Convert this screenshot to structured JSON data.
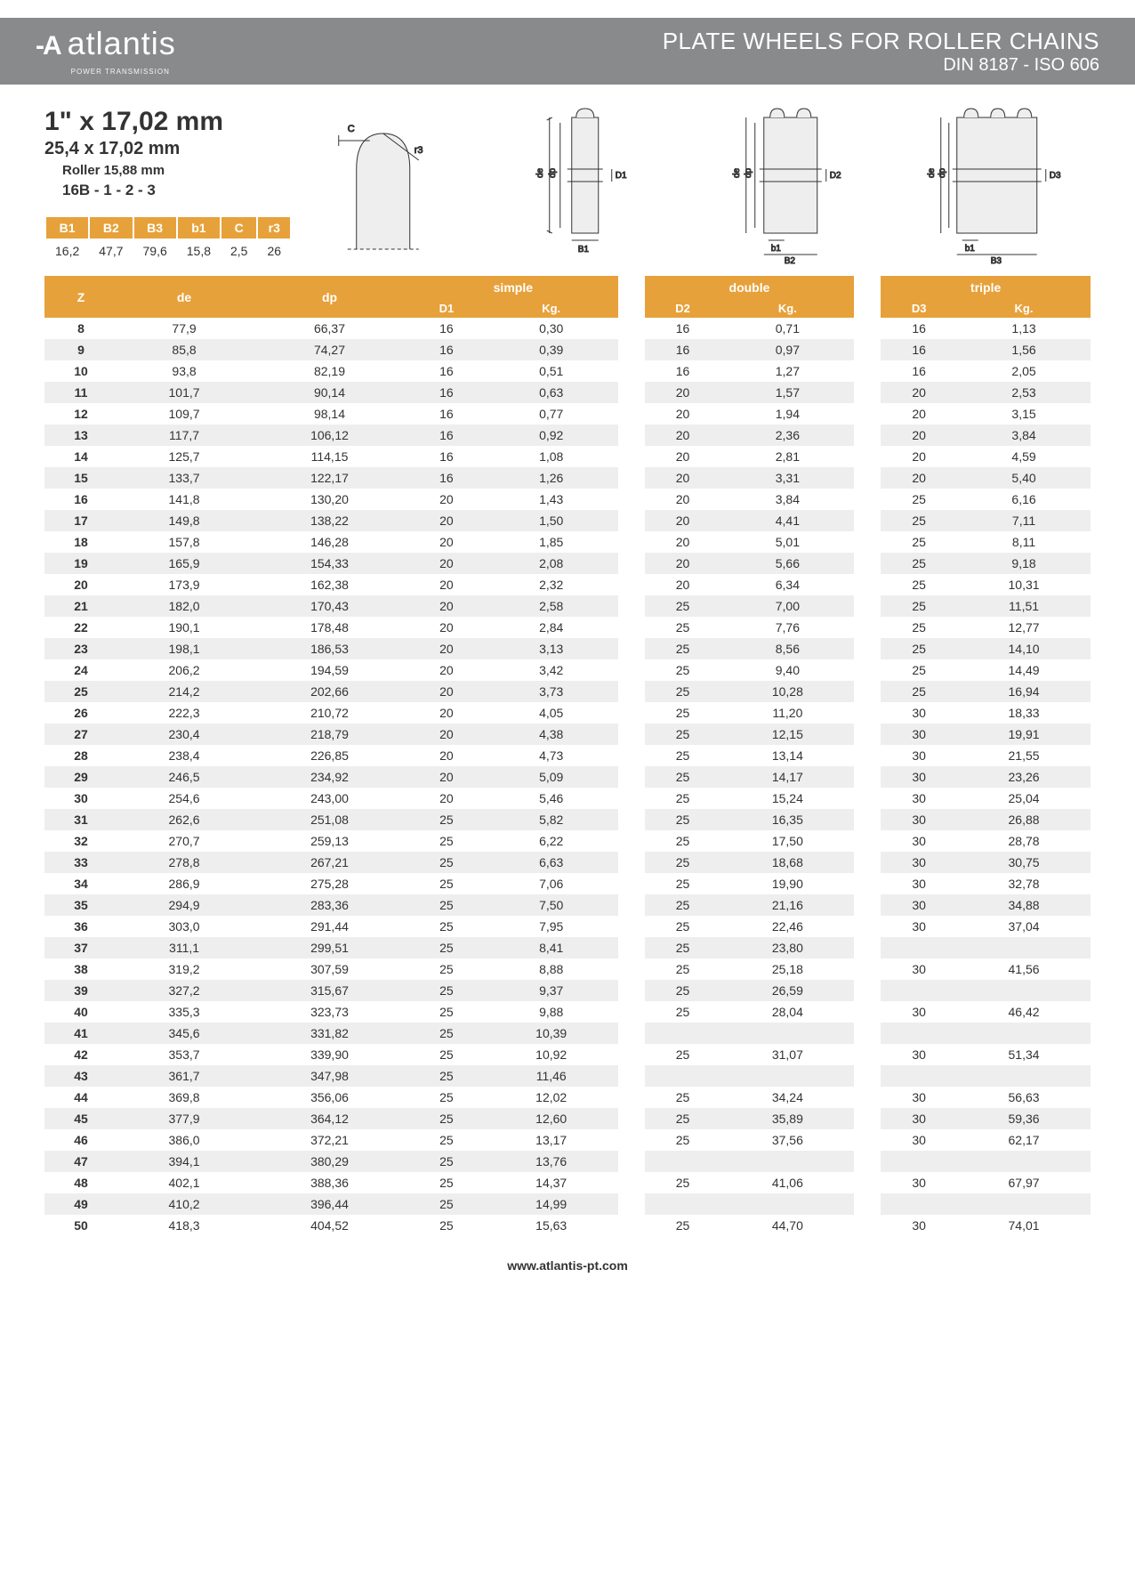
{
  "header": {
    "logo_name": "atlantis",
    "logo_tag": "POWER TRANSMISSION",
    "title": "PLATE WHEELS FOR ROLLER CHAINS",
    "subtitle": "DIN 8187 - ISO 606"
  },
  "spec": {
    "size1": "1\" x 17,02 mm",
    "size2": "25,4 x 17,02 mm",
    "roller": "Roller 15,88 mm",
    "code": "16B - 1 - 2 - 3"
  },
  "params": {
    "headers": [
      "B1",
      "B2",
      "B3",
      "b1",
      "C",
      "r3"
    ],
    "values": [
      "16,2",
      "47,7",
      "79,6",
      "15,8",
      "2,5",
      "26"
    ]
  },
  "diagram_labels": {
    "C": "C",
    "r3": "r3",
    "de": "de",
    "dp": "dp",
    "D1": "D1",
    "D2": "D2",
    "D3": "D3",
    "B1": "B1",
    "B2": "B2",
    "B3": "B3",
    "b1": "b1"
  },
  "table": {
    "groups": [
      "simple",
      "double",
      "triple"
    ],
    "base_cols": [
      "Z",
      "de",
      "dp"
    ],
    "sub_cols": [
      [
        "D1",
        "Kg."
      ],
      [
        "D2",
        "Kg."
      ],
      [
        "D3",
        "Kg."
      ]
    ],
    "rows": [
      {
        "z": "8",
        "de": "77,9",
        "dp": "66,37",
        "d1": "16",
        "k1": "0,30",
        "d2": "16",
        "k2": "0,71",
        "d3": "16",
        "k3": "1,13"
      },
      {
        "z": "9",
        "de": "85,8",
        "dp": "74,27",
        "d1": "16",
        "k1": "0,39",
        "d2": "16",
        "k2": "0,97",
        "d3": "16",
        "k3": "1,56"
      },
      {
        "z": "10",
        "de": "93,8",
        "dp": "82,19",
        "d1": "16",
        "k1": "0,51",
        "d2": "16",
        "k2": "1,27",
        "d3": "16",
        "k3": "2,05"
      },
      {
        "z": "11",
        "de": "101,7",
        "dp": "90,14",
        "d1": "16",
        "k1": "0,63",
        "d2": "20",
        "k2": "1,57",
        "d3": "20",
        "k3": "2,53"
      },
      {
        "z": "12",
        "de": "109,7",
        "dp": "98,14",
        "d1": "16",
        "k1": "0,77",
        "d2": "20",
        "k2": "1,94",
        "d3": "20",
        "k3": "3,15"
      },
      {
        "z": "13",
        "de": "117,7",
        "dp": "106,12",
        "d1": "16",
        "k1": "0,92",
        "d2": "20",
        "k2": "2,36",
        "d3": "20",
        "k3": "3,84"
      },
      {
        "z": "14",
        "de": "125,7",
        "dp": "114,15",
        "d1": "16",
        "k1": "1,08",
        "d2": "20",
        "k2": "2,81",
        "d3": "20",
        "k3": "4,59"
      },
      {
        "z": "15",
        "de": "133,7",
        "dp": "122,17",
        "d1": "16",
        "k1": "1,26",
        "d2": "20",
        "k2": "3,31",
        "d3": "20",
        "k3": "5,40"
      },
      {
        "z": "16",
        "de": "141,8",
        "dp": "130,20",
        "d1": "20",
        "k1": "1,43",
        "d2": "20",
        "k2": "3,84",
        "d3": "25",
        "k3": "6,16"
      },
      {
        "z": "17",
        "de": "149,8",
        "dp": "138,22",
        "d1": "20",
        "k1": "1,50",
        "d2": "20",
        "k2": "4,41",
        "d3": "25",
        "k3": "7,11"
      },
      {
        "z": "18",
        "de": "157,8",
        "dp": "146,28",
        "d1": "20",
        "k1": "1,85",
        "d2": "20",
        "k2": "5,01",
        "d3": "25",
        "k3": "8,11"
      },
      {
        "z": "19",
        "de": "165,9",
        "dp": "154,33",
        "d1": "20",
        "k1": "2,08",
        "d2": "20",
        "k2": "5,66",
        "d3": "25",
        "k3": "9,18"
      },
      {
        "z": "20",
        "de": "173,9",
        "dp": "162,38",
        "d1": "20",
        "k1": "2,32",
        "d2": "20",
        "k2": "6,34",
        "d3": "25",
        "k3": "10,31"
      },
      {
        "z": "21",
        "de": "182,0",
        "dp": "170,43",
        "d1": "20",
        "k1": "2,58",
        "d2": "25",
        "k2": "7,00",
        "d3": "25",
        "k3": "11,51"
      },
      {
        "z": "22",
        "de": "190,1",
        "dp": "178,48",
        "d1": "20",
        "k1": "2,84",
        "d2": "25",
        "k2": "7,76",
        "d3": "25",
        "k3": "12,77"
      },
      {
        "z": "23",
        "de": "198,1",
        "dp": "186,53",
        "d1": "20",
        "k1": "3,13",
        "d2": "25",
        "k2": "8,56",
        "d3": "25",
        "k3": "14,10"
      },
      {
        "z": "24",
        "de": "206,2",
        "dp": "194,59",
        "d1": "20",
        "k1": "3,42",
        "d2": "25",
        "k2": "9,40",
        "d3": "25",
        "k3": "14,49"
      },
      {
        "z": "25",
        "de": "214,2",
        "dp": "202,66",
        "d1": "20",
        "k1": "3,73",
        "d2": "25",
        "k2": "10,28",
        "d3": "25",
        "k3": "16,94"
      },
      {
        "z": "26",
        "de": "222,3",
        "dp": "210,72",
        "d1": "20",
        "k1": "4,05",
        "d2": "25",
        "k2": "11,20",
        "d3": "30",
        "k3": "18,33"
      },
      {
        "z": "27",
        "de": "230,4",
        "dp": "218,79",
        "d1": "20",
        "k1": "4,38",
        "d2": "25",
        "k2": "12,15",
        "d3": "30",
        "k3": "19,91"
      },
      {
        "z": "28",
        "de": "238,4",
        "dp": "226,85",
        "d1": "20",
        "k1": "4,73",
        "d2": "25",
        "k2": "13,14",
        "d3": "30",
        "k3": "21,55"
      },
      {
        "z": "29",
        "de": "246,5",
        "dp": "234,92",
        "d1": "20",
        "k1": "5,09",
        "d2": "25",
        "k2": "14,17",
        "d3": "30",
        "k3": "23,26"
      },
      {
        "z": "30",
        "de": "254,6",
        "dp": "243,00",
        "d1": "20",
        "k1": "5,46",
        "d2": "25",
        "k2": "15,24",
        "d3": "30",
        "k3": "25,04"
      },
      {
        "z": "31",
        "de": "262,6",
        "dp": "251,08",
        "d1": "25",
        "k1": "5,82",
        "d2": "25",
        "k2": "16,35",
        "d3": "30",
        "k3": "26,88"
      },
      {
        "z": "32",
        "de": "270,7",
        "dp": "259,13",
        "d1": "25",
        "k1": "6,22",
        "d2": "25",
        "k2": "17,50",
        "d3": "30",
        "k3": "28,78"
      },
      {
        "z": "33",
        "de": "278,8",
        "dp": "267,21",
        "d1": "25",
        "k1": "6,63",
        "d2": "25",
        "k2": "18,68",
        "d3": "30",
        "k3": "30,75"
      },
      {
        "z": "34",
        "de": "286,9",
        "dp": "275,28",
        "d1": "25",
        "k1": "7,06",
        "d2": "25",
        "k2": "19,90",
        "d3": "30",
        "k3": "32,78"
      },
      {
        "z": "35",
        "de": "294,9",
        "dp": "283,36",
        "d1": "25",
        "k1": "7,50",
        "d2": "25",
        "k2": "21,16",
        "d3": "30",
        "k3": "34,88"
      },
      {
        "z": "36",
        "de": "303,0",
        "dp": "291,44",
        "d1": "25",
        "k1": "7,95",
        "d2": "25",
        "k2": "22,46",
        "d3": "30",
        "k3": "37,04"
      },
      {
        "z": "37",
        "de": "311,1",
        "dp": "299,51",
        "d1": "25",
        "k1": "8,41",
        "d2": "25",
        "k2": "23,80",
        "d3": "",
        "k3": ""
      },
      {
        "z": "38",
        "de": "319,2",
        "dp": "307,59",
        "d1": "25",
        "k1": "8,88",
        "d2": "25",
        "k2": "25,18",
        "d3": "30",
        "k3": "41,56"
      },
      {
        "z": "39",
        "de": "327,2",
        "dp": "315,67",
        "d1": "25",
        "k1": "9,37",
        "d2": "25",
        "k2": "26,59",
        "d3": "",
        "k3": ""
      },
      {
        "z": "40",
        "de": "335,3",
        "dp": "323,73",
        "d1": "25",
        "k1": "9,88",
        "d2": "25",
        "k2": "28,04",
        "d3": "30",
        "k3": "46,42"
      },
      {
        "z": "41",
        "de": "345,6",
        "dp": "331,82",
        "d1": "25",
        "k1": "10,39",
        "d2": "",
        "k2": "",
        "d3": "",
        "k3": ""
      },
      {
        "z": "42",
        "de": "353,7",
        "dp": "339,90",
        "d1": "25",
        "k1": "10,92",
        "d2": "25",
        "k2": "31,07",
        "d3": "30",
        "k3": "51,34"
      },
      {
        "z": "43",
        "de": "361,7",
        "dp": "347,98",
        "d1": "25",
        "k1": "11,46",
        "d2": "",
        "k2": "",
        "d3": "",
        "k3": ""
      },
      {
        "z": "44",
        "de": "369,8",
        "dp": "356,06",
        "d1": "25",
        "k1": "12,02",
        "d2": "25",
        "k2": "34,24",
        "d3": "30",
        "k3": "56,63"
      },
      {
        "z": "45",
        "de": "377,9",
        "dp": "364,12",
        "d1": "25",
        "k1": "12,60",
        "d2": "25",
        "k2": "35,89",
        "d3": "30",
        "k3": "59,36"
      },
      {
        "z": "46",
        "de": "386,0",
        "dp": "372,21",
        "d1": "25",
        "k1": "13,17",
        "d2": "25",
        "k2": "37,56",
        "d3": "30",
        "k3": "62,17"
      },
      {
        "z": "47",
        "de": "394,1",
        "dp": "380,29",
        "d1": "25",
        "k1": "13,76",
        "d2": "",
        "k2": "",
        "d3": "",
        "k3": ""
      },
      {
        "z": "48",
        "de": "402,1",
        "dp": "388,36",
        "d1": "25",
        "k1": "14,37",
        "d2": "25",
        "k2": "41,06",
        "d3": "30",
        "k3": "67,97"
      },
      {
        "z": "49",
        "de": "410,2",
        "dp": "396,44",
        "d1": "25",
        "k1": "14,99",
        "d2": "",
        "k2": "",
        "d3": "",
        "k3": ""
      },
      {
        "z": "50",
        "de": "418,3",
        "dp": "404,52",
        "d1": "25",
        "k1": "15,63",
        "d2": "25",
        "k2": "44,70",
        "d3": "30",
        "k3": "74,01"
      }
    ]
  },
  "footer": "www.atlantis-pt.com",
  "colors": {
    "header_bg": "#888a8c",
    "accent": "#e7a13a",
    "row_alt": "#eeeeee",
    "text": "#333333"
  }
}
